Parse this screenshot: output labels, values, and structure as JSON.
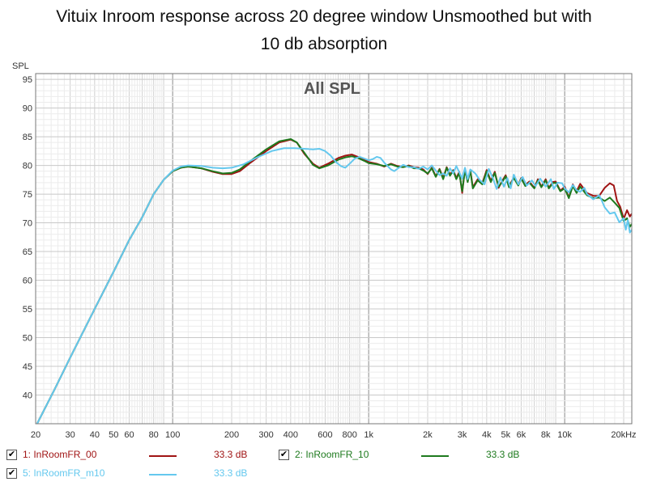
{
  "title_line1": "Vituix Inroom response across 20 degree window Unsmoothed but with",
  "title_line2": "10 db absorption",
  "chart_data": {
    "type": "line",
    "plot_label": "All SPL",
    "ylabel": "SPL",
    "xlabel": "",
    "x_scale": "log",
    "xlim": [
      20,
      22000
    ],
    "ylim": [
      35,
      96
    ],
    "grid": true,
    "x_ticks": [
      {
        "v": 20,
        "label": "20"
      },
      {
        "v": 30,
        "label": "30"
      },
      {
        "v": 40,
        "label": "40"
      },
      {
        "v": 50,
        "label": "50"
      },
      {
        "v": 60,
        "label": "60"
      },
      {
        "v": 80,
        "label": "80"
      },
      {
        "v": 100,
        "label": "100"
      },
      {
        "v": 200,
        "label": "200"
      },
      {
        "v": 300,
        "label": "300"
      },
      {
        "v": 400,
        "label": "400"
      },
      {
        "v": 600,
        "label": "600"
      },
      {
        "v": 800,
        "label": "800"
      },
      {
        "v": 1000,
        "label": "1k"
      },
      {
        "v": 2000,
        "label": "2k"
      },
      {
        "v": 3000,
        "label": "3k"
      },
      {
        "v": 4000,
        "label": "4k"
      },
      {
        "v": 5000,
        "label": "5k"
      },
      {
        "v": 6000,
        "label": "6k"
      },
      {
        "v": 8000,
        "label": "8k"
      },
      {
        "v": 10000,
        "label": "10k"
      },
      {
        "v": 20000,
        "label": "20kHz"
      }
    ],
    "y_ticks": [
      40,
      45,
      50,
      55,
      60,
      65,
      70,
      75,
      80,
      85,
      90,
      95
    ],
    "series": [
      {
        "name": "1: InRoomFR_00",
        "color": "#a01414",
        "value_label": "33.3 dB",
        "points": [
          [
            20,
            34.5
          ],
          [
            25,
            41
          ],
          [
            30,
            46.5
          ],
          [
            40,
            55
          ],
          [
            50,
            61.5
          ],
          [
            60,
            67
          ],
          [
            70,
            71
          ],
          [
            80,
            75
          ],
          [
            90,
            77.5
          ],
          [
            100,
            79
          ],
          [
            110,
            79.6
          ],
          [
            120,
            79.8
          ],
          [
            140,
            79.5
          ],
          [
            160,
            78.9
          ],
          [
            180,
            78.5
          ],
          [
            200,
            78.5
          ],
          [
            220,
            79
          ],
          [
            250,
            80.5
          ],
          [
            300,
            82.5
          ],
          [
            350,
            84
          ],
          [
            400,
            84.5
          ],
          [
            430,
            84
          ],
          [
            470,
            82
          ],
          [
            520,
            80.3
          ],
          [
            560,
            79.6
          ],
          [
            620,
            80.3
          ],
          [
            700,
            81.3
          ],
          [
            760,
            81.7
          ],
          [
            820,
            81.9
          ],
          [
            880,
            81.5
          ],
          [
            950,
            81
          ],
          [
            1000,
            80.6
          ],
          [
            1100,
            80.3
          ],
          [
            1200,
            79.8
          ],
          [
            1300,
            80.3
          ],
          [
            1400,
            79.9
          ],
          [
            1500,
            79.7
          ],
          [
            1600,
            80
          ],
          [
            1700,
            79.7
          ],
          [
            1800,
            79.6
          ],
          [
            1900,
            79.3
          ],
          [
            2000,
            78.5
          ],
          [
            2100,
            79.6
          ],
          [
            2200,
            78.1
          ],
          [
            2300,
            79.4
          ],
          [
            2400,
            77.8
          ],
          [
            2500,
            79.7
          ],
          [
            2600,
            78.4
          ],
          [
            2700,
            79.2
          ],
          [
            2800,
            77.8
          ],
          [
            2900,
            78.9
          ],
          [
            3000,
            75.2
          ],
          [
            3100,
            79.4
          ],
          [
            3200,
            77.3
          ],
          [
            3300,
            79.2
          ],
          [
            3400,
            76.2
          ],
          [
            3600,
            77.6
          ],
          [
            3800,
            76.9
          ],
          [
            4000,
            79.2
          ],
          [
            4200,
            77.3
          ],
          [
            4400,
            78.9
          ],
          [
            4600,
            76.1
          ],
          [
            4800,
            77.3
          ],
          [
            5000,
            78.3
          ],
          [
            5200,
            76.4
          ],
          [
            5500,
            77.9
          ],
          [
            5800,
            76.7
          ],
          [
            6000,
            77.8
          ],
          [
            6300,
            76.6
          ],
          [
            6600,
            77.2
          ],
          [
            7000,
            76.1
          ],
          [
            7300,
            77.6
          ],
          [
            7600,
            76.3
          ],
          [
            8000,
            77.6
          ],
          [
            8300,
            76.1
          ],
          [
            8700,
            77.1
          ],
          [
            9000,
            77.2
          ],
          [
            9500,
            75.6
          ],
          [
            10000,
            76.3
          ],
          [
            10500,
            74.4
          ],
          [
            11000,
            76.7
          ],
          [
            11500,
            75.5
          ],
          [
            12000,
            76.8
          ],
          [
            13000,
            75.2
          ],
          [
            14000,
            74.7
          ],
          [
            15000,
            74.7
          ],
          [
            16000,
            76.1
          ],
          [
            17000,
            76.9
          ],
          [
            17800,
            76.5
          ],
          [
            18500,
            73.8
          ],
          [
            19200,
            72.8
          ],
          [
            20000,
            70.7
          ],
          [
            20800,
            72.2
          ],
          [
            21500,
            71.1
          ],
          [
            22000,
            71.6
          ]
        ]
      },
      {
        "name": "2: InRoomFR_10",
        "color": "#1e7a1e",
        "value_label": "33.3 dB",
        "points": [
          [
            20,
            34.5
          ],
          [
            25,
            41
          ],
          [
            30,
            46.5
          ],
          [
            40,
            55
          ],
          [
            50,
            61.5
          ],
          [
            60,
            67
          ],
          [
            70,
            71
          ],
          [
            80,
            75
          ],
          [
            90,
            77.5
          ],
          [
            100,
            79
          ],
          [
            110,
            79.6
          ],
          [
            120,
            79.8
          ],
          [
            140,
            79.5
          ],
          [
            160,
            79
          ],
          [
            180,
            78.6
          ],
          [
            200,
            78.7
          ],
          [
            220,
            79.3
          ],
          [
            250,
            80.8
          ],
          [
            300,
            82.8
          ],
          [
            350,
            84.2
          ],
          [
            400,
            84.6
          ],
          [
            430,
            84
          ],
          [
            470,
            82.2
          ],
          [
            520,
            80.1
          ],
          [
            560,
            79.5
          ],
          [
            620,
            80
          ],
          [
            700,
            81
          ],
          [
            760,
            81.4
          ],
          [
            820,
            81.6
          ],
          [
            880,
            81.3
          ],
          [
            950,
            80.8
          ],
          [
            1000,
            80.4
          ],
          [
            1100,
            80.2
          ],
          [
            1200,
            79.9
          ],
          [
            1300,
            80.2
          ],
          [
            1400,
            79.8
          ],
          [
            1500,
            79.7
          ],
          [
            1600,
            79.9
          ],
          [
            1700,
            79.5
          ],
          [
            1800,
            79.5
          ],
          [
            1900,
            79.1
          ],
          [
            2000,
            78.6
          ],
          [
            2100,
            79.5
          ],
          [
            2200,
            78
          ],
          [
            2300,
            79.3
          ],
          [
            2400,
            77.6
          ],
          [
            2500,
            79.6
          ],
          [
            2600,
            78.2
          ],
          [
            2700,
            79.1
          ],
          [
            2800,
            77.6
          ],
          [
            2900,
            78.7
          ],
          [
            3000,
            75.5
          ],
          [
            3100,
            79.2
          ],
          [
            3200,
            77.1
          ],
          [
            3300,
            79.1
          ],
          [
            3400,
            76
          ],
          [
            3600,
            77.4
          ],
          [
            3800,
            76.7
          ],
          [
            4000,
            79
          ],
          [
            4200,
            77.1
          ],
          [
            4400,
            78.7
          ],
          [
            4600,
            76.3
          ],
          [
            4800,
            77.1
          ],
          [
            5000,
            78.1
          ],
          [
            5200,
            76.2
          ],
          [
            5500,
            77.8
          ],
          [
            5800,
            76.5
          ],
          [
            6000,
            77.7
          ],
          [
            6300,
            76.4
          ],
          [
            6600,
            77
          ],
          [
            7000,
            76
          ],
          [
            7300,
            77.4
          ],
          [
            7600,
            76.2
          ],
          [
            8000,
            77.4
          ],
          [
            8300,
            76
          ],
          [
            8700,
            76.9
          ],
          [
            9000,
            77
          ],
          [
            9500,
            75.5
          ],
          [
            10000,
            76
          ],
          [
            10500,
            74.3
          ],
          [
            11000,
            76.4
          ],
          [
            11500,
            75.2
          ],
          [
            12000,
            76.3
          ],
          [
            13000,
            74.8
          ],
          [
            14000,
            74.3
          ],
          [
            15000,
            74.4
          ],
          [
            16000,
            73.8
          ],
          [
            17000,
            74.4
          ],
          [
            18000,
            73.5
          ],
          [
            19000,
            72.6
          ],
          [
            20000,
            70.3
          ],
          [
            20800,
            70.8
          ],
          [
            21500,
            69.3
          ],
          [
            22000,
            69.8
          ]
        ]
      },
      {
        "name": "5: InRoomFR_m10",
        "color": "#64c8ee",
        "value_label": "33.3 dB",
        "points": [
          [
            20,
            34.5
          ],
          [
            25,
            41
          ],
          [
            30,
            46.5
          ],
          [
            40,
            55
          ],
          [
            50,
            61.5
          ],
          [
            60,
            67
          ],
          [
            70,
            71
          ],
          [
            80,
            75
          ],
          [
            90,
            77.5
          ],
          [
            100,
            79.1
          ],
          [
            110,
            79.8
          ],
          [
            120,
            80
          ],
          [
            140,
            79.9
          ],
          [
            160,
            79.6
          ],
          [
            180,
            79.5
          ],
          [
            200,
            79.6
          ],
          [
            230,
            80.2
          ],
          [
            270,
            81.4
          ],
          [
            320,
            82.5
          ],
          [
            370,
            83
          ],
          [
            420,
            83
          ],
          [
            470,
            82.9
          ],
          [
            520,
            82.8
          ],
          [
            560,
            82.9
          ],
          [
            600,
            82.5
          ],
          [
            640,
            81.7
          ],
          [
            680,
            80.6
          ],
          [
            720,
            79.9
          ],
          [
            760,
            79.6
          ],
          [
            800,
            80.3
          ],
          [
            850,
            81.2
          ],
          [
            900,
            81.5
          ],
          [
            950,
            81.2
          ],
          [
            1000,
            80.9
          ],
          [
            1050,
            81.1
          ],
          [
            1100,
            81.5
          ],
          [
            1150,
            81.3
          ],
          [
            1200,
            80.5
          ],
          [
            1300,
            79.3
          ],
          [
            1350,
            79
          ],
          [
            1400,
            79.4
          ],
          [
            1500,
            80.1
          ],
          [
            1600,
            79.7
          ],
          [
            1700,
            79.7
          ],
          [
            1800,
            79.4
          ],
          [
            1900,
            79.8
          ],
          [
            2000,
            79.3
          ],
          [
            2100,
            80
          ],
          [
            2200,
            79.1
          ],
          [
            2300,
            78.3
          ],
          [
            2400,
            78.6
          ],
          [
            2500,
            78.2
          ],
          [
            2600,
            79.5
          ],
          [
            2700,
            78.6
          ],
          [
            2800,
            79.9
          ],
          [
            2900,
            78.8
          ],
          [
            3000,
            77.7
          ],
          [
            3100,
            79.6
          ],
          [
            3200,
            77.6
          ],
          [
            3300,
            79.3
          ],
          [
            3500,
            78.6
          ],
          [
            3700,
            77.4
          ],
          [
            3900,
            76.7
          ],
          [
            4100,
            79.4
          ],
          [
            4300,
            77.8
          ],
          [
            4500,
            75.9
          ],
          [
            4700,
            77.9
          ],
          [
            4900,
            76.3
          ],
          [
            5100,
            77.8
          ],
          [
            5300,
            76
          ],
          [
            5500,
            78.4
          ],
          [
            5800,
            76.7
          ],
          [
            6100,
            78
          ],
          [
            6400,
            76.5
          ],
          [
            6800,
            77.4
          ],
          [
            7100,
            76.4
          ],
          [
            7500,
            77.7
          ],
          [
            8000,
            76.3
          ],
          [
            8500,
            77.6
          ],
          [
            8800,
            75.9
          ],
          [
            9200,
            77
          ],
          [
            9700,
            76.9
          ],
          [
            10000,
            76
          ],
          [
            10500,
            75.3
          ],
          [
            11000,
            76.6
          ],
          [
            11500,
            75.7
          ],
          [
            12000,
            75.4
          ],
          [
            12600,
            76.1
          ],
          [
            13000,
            75
          ],
          [
            14000,
            74.1
          ],
          [
            15000,
            74.8
          ],
          [
            15500,
            73.8
          ],
          [
            16000,
            72.7
          ],
          [
            17000,
            71.6
          ],
          [
            18000,
            71.8
          ],
          [
            19000,
            70.1
          ],
          [
            20000,
            70.8
          ],
          [
            20500,
            68.8
          ],
          [
            21000,
            70.5
          ],
          [
            21500,
            68.3
          ],
          [
            22000,
            68.8
          ]
        ]
      }
    ]
  },
  "legend": [
    {
      "id": "s1",
      "checked": "✔",
      "name": "1: InRoomFR_00",
      "color": "#a01414",
      "value": "33.3 dB"
    },
    {
      "id": "s2",
      "checked": "✔",
      "name": "2: InRoomFR_10",
      "color": "#1e7a1e",
      "value": "33.3 dB"
    },
    {
      "id": "s5",
      "checked": "✔",
      "name": "5: InRoomFR_m10",
      "color": "#64c8ee",
      "value": "33.3 dB"
    }
  ]
}
